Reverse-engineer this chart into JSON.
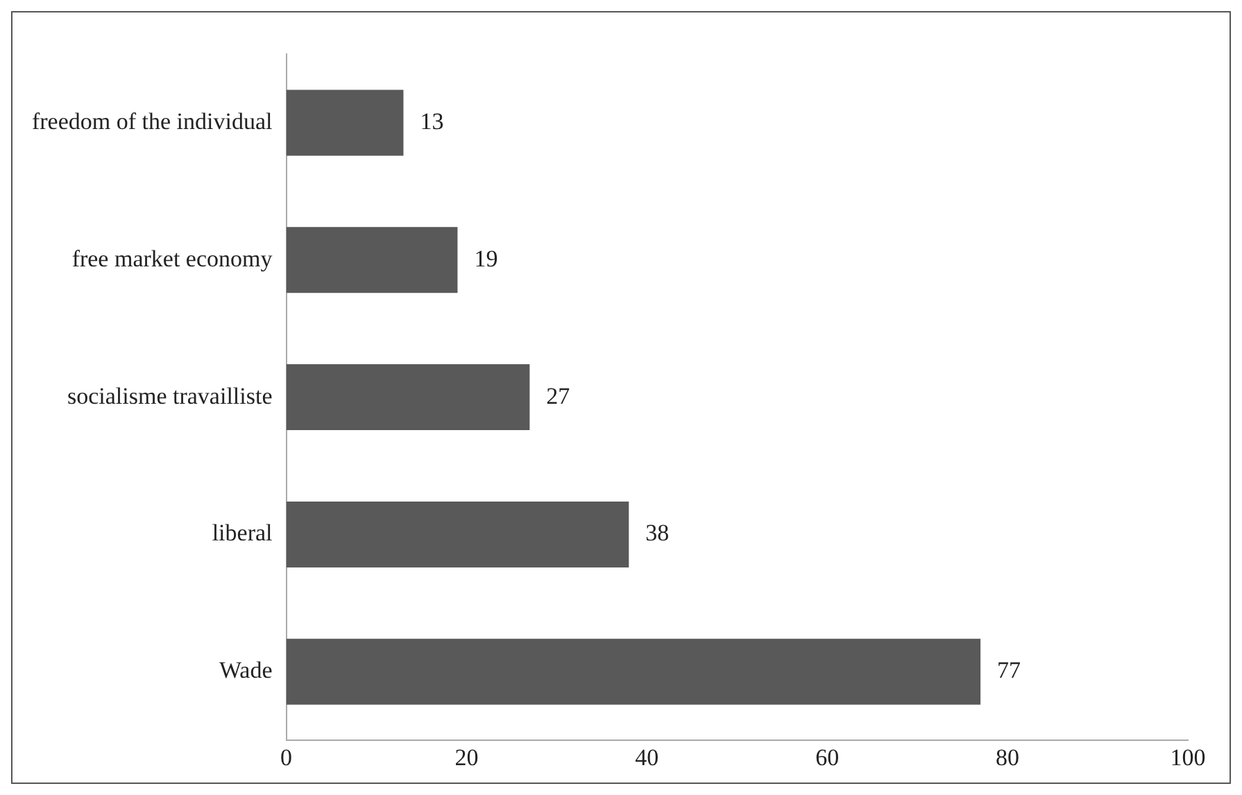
{
  "chart_data": {
    "type": "bar",
    "orientation": "horizontal",
    "categories": [
      "freedom of the individual",
      "free market economy",
      "socialisme travailliste",
      "liberal",
      "Wade"
    ],
    "values": [
      13,
      19,
      27,
      38,
      77
    ],
    "color": "#595959",
    "xlim": [
      0,
      100
    ],
    "xticks": [
      0,
      20,
      40,
      60,
      80,
      100
    ],
    "grid": false,
    "legend": false,
    "data_labels": true
  }
}
